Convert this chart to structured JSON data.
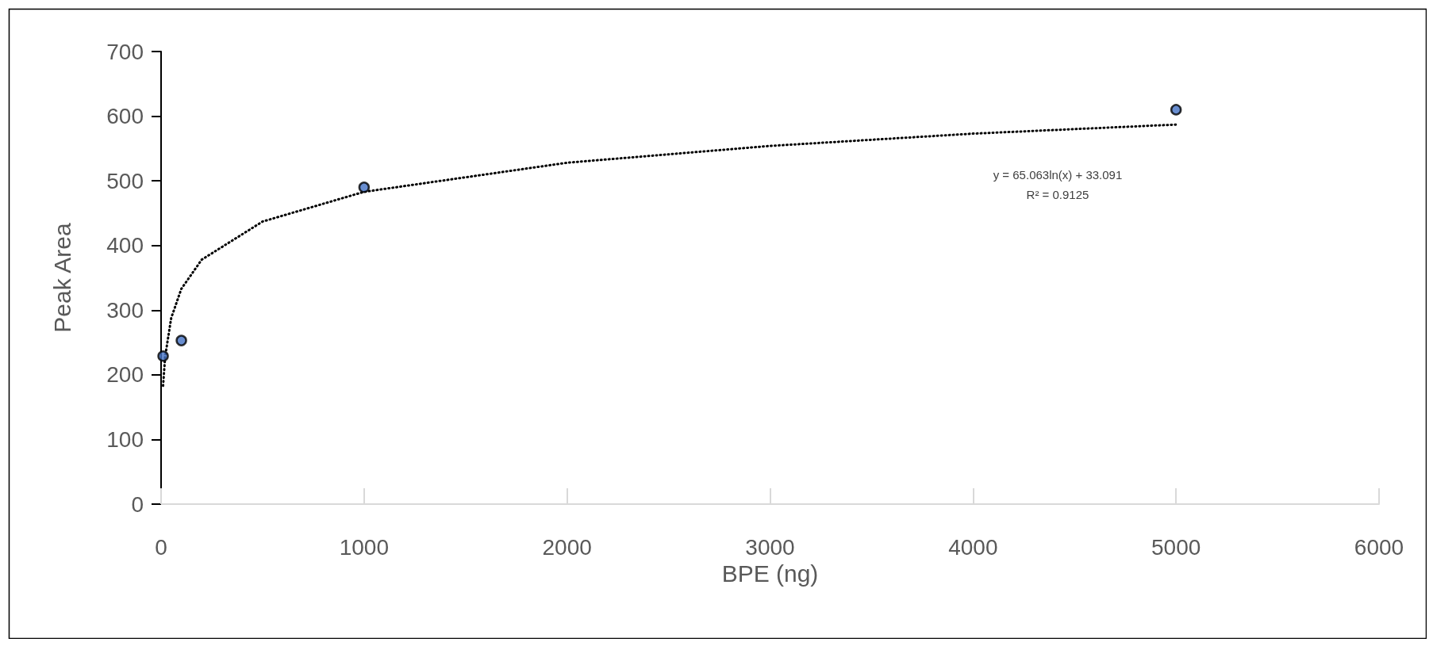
{
  "chart_data": {
    "type": "scatter",
    "xlabel": "BPE (ng)",
    "ylabel": "Peak Area",
    "xlim": [
      0,
      6000
    ],
    "xticks": [
      0,
      1000,
      2000,
      3000,
      4000,
      5000,
      6000
    ],
    "ylim": [
      0,
      700
    ],
    "yticks": [
      0,
      100,
      200,
      300,
      400,
      500,
      600,
      700
    ],
    "grid": false,
    "marker": "circle",
    "series": [
      {
        "type": "scatter",
        "color": "#4472c4",
        "x": [
          10,
          100,
          1000,
          5000
        ],
        "values": [
          229,
          253,
          490,
          610
        ]
      },
      {
        "type": "line",
        "color": "#000000",
        "line_style": "dotted",
        "marker": "none",
        "x": [
          10,
          20,
          50,
          100,
          200,
          500,
          1000,
          2000,
          3000,
          4000,
          5000
        ],
        "values": [
          183,
          228,
          288,
          333,
          378,
          437,
          483,
          528,
          554,
          573,
          587
        ]
      }
    ],
    "annotations": [
      "y = 65.063ln(x) + 33.091",
      "R² = 0.9125"
    ]
  }
}
